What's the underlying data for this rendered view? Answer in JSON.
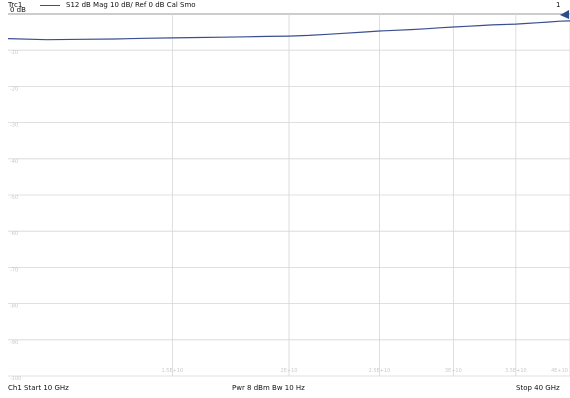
{
  "header": {
    "trace": "Trc1",
    "parameter": "S12  dB Mag  10 dB/ Ref 0 dB  Cal Smo",
    "channel_number": "1"
  },
  "footer": {
    "start": "Ch1  Start  10 GHz",
    "power_bw": "Pwr  8 dBm  Bw  10 Hz",
    "stop": "Stop  40 GHz"
  },
  "colors": {
    "trace": "#3a4f8f",
    "ref_marker": "#2b4d8c",
    "grid": "#d6d6d6",
    "ref_line": "#9a9a9a"
  },
  "chart_data": {
    "type": "line",
    "title": "",
    "xlabel": "",
    "ylabel": "",
    "ref_label": "0 dB",
    "xlim": [
      10,
      40
    ],
    "ylim": [
      -100,
      0
    ],
    "x_scale": "log",
    "x_unit": "GHz",
    "y_ticks": [
      0,
      -10,
      -20,
      -30,
      -40,
      -50,
      -60,
      -70,
      -80,
      -90,
      -100
    ],
    "y_tick_labels": [
      "0 dB",
      "-10",
      "-20",
      "-30",
      "-40",
      "-50",
      "-60",
      "-70",
      "-80",
      "-90",
      "-100"
    ],
    "x_ticks": [
      15,
      20,
      25,
      30,
      35,
      40
    ],
    "x_tick_labels": [
      "1.5E+10",
      "2E+10",
      "2.5E+10",
      "3E+10",
      "3.5E+10",
      "4E+10"
    ],
    "grid": true,
    "series": [
      {
        "values": [
          [
            10,
            -6.8
          ],
          [
            11,
            -7.1
          ],
          [
            12,
            -7.0
          ],
          [
            13,
            -6.9
          ],
          [
            14,
            -6.7
          ],
          [
            15,
            -6.6
          ],
          [
            16,
            -6.5
          ],
          [
            17,
            -6.4
          ],
          [
            18,
            -6.3
          ],
          [
            19,
            -6.2
          ],
          [
            20,
            -6.1
          ],
          [
            21,
            -5.9
          ],
          [
            22,
            -5.6
          ],
          [
            23,
            -5.3
          ],
          [
            24,
            -5.0
          ],
          [
            25,
            -4.7
          ],
          [
            26,
            -4.5
          ],
          [
            27,
            -4.3
          ],
          [
            28,
            -4.1
          ],
          [
            29,
            -3.8
          ],
          [
            30,
            -3.6
          ],
          [
            31,
            -3.4
          ],
          [
            32,
            -3.2
          ],
          [
            33,
            -3.0
          ],
          [
            34,
            -2.9
          ],
          [
            35,
            -2.8
          ],
          [
            36,
            -2.6
          ],
          [
            37,
            -2.4
          ],
          [
            38,
            -2.2
          ],
          [
            39,
            -2.0
          ],
          [
            40,
            -1.9
          ]
        ]
      }
    ]
  }
}
